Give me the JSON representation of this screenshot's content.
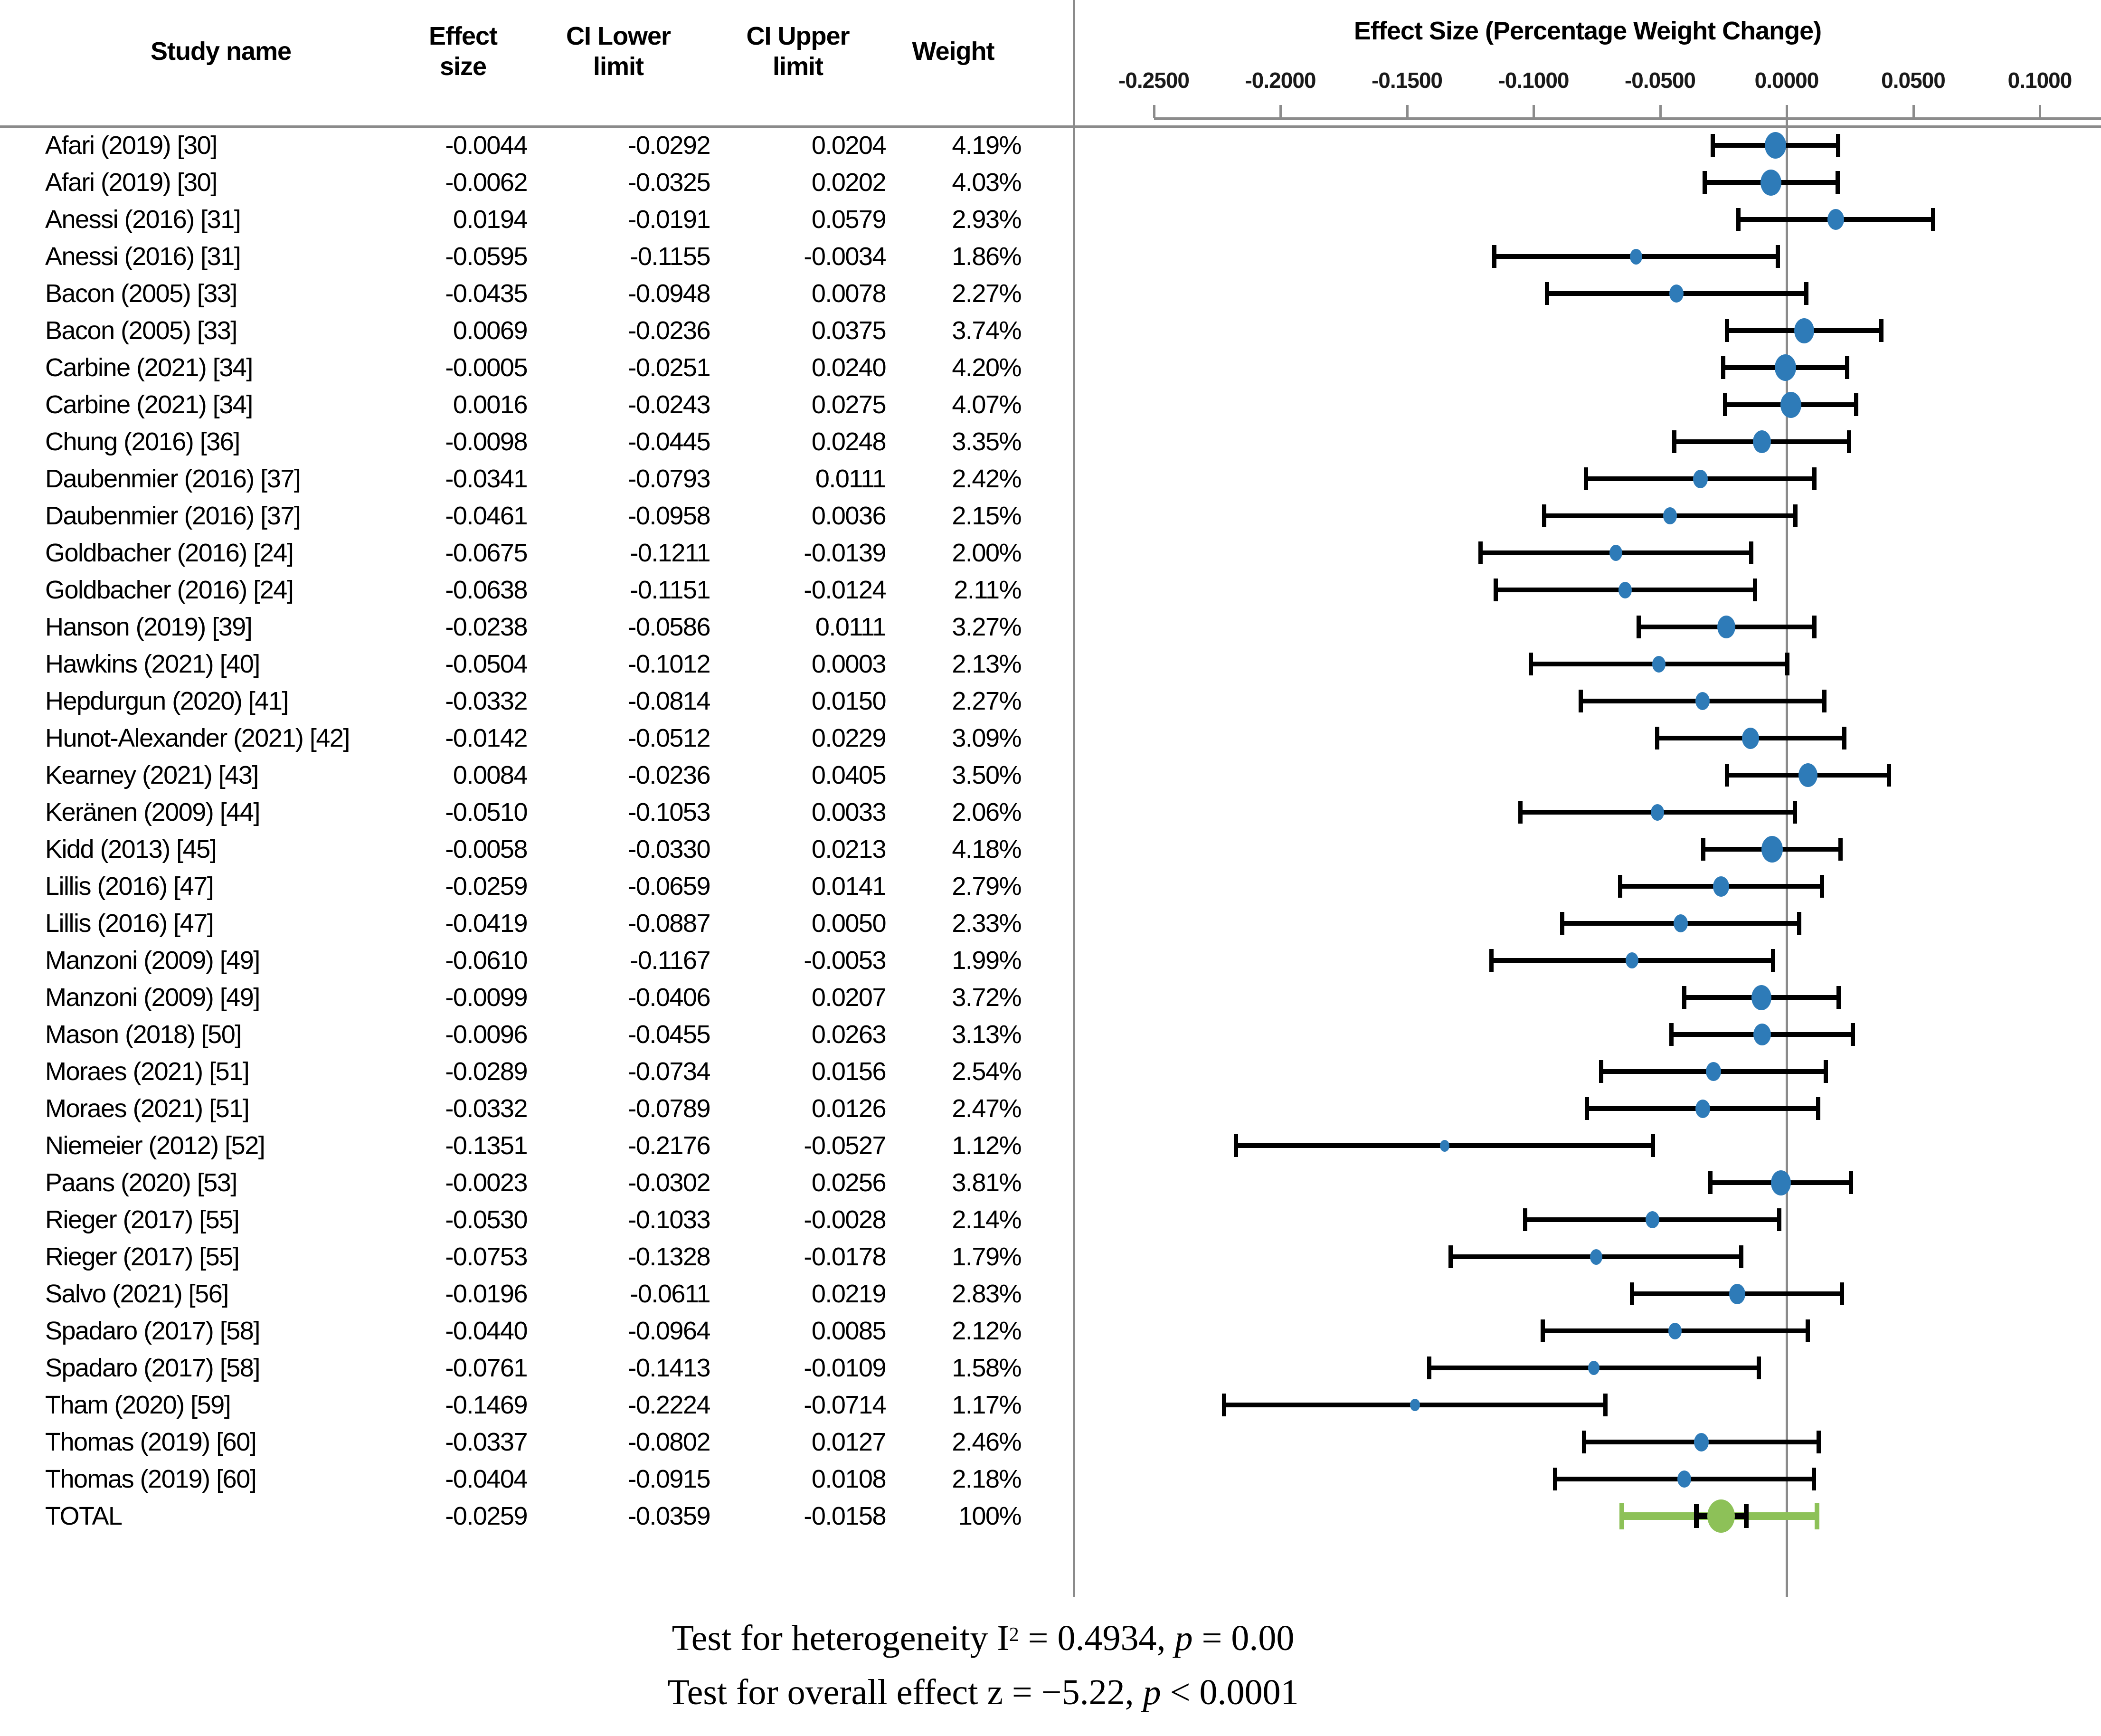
{
  "colors": {
    "marker_blue": "#2E7BB8",
    "total_green": "#8DC158",
    "line_gray": "#8B8B8B",
    "whisker_black": "#000000"
  },
  "chart_data": {
    "type": "forest",
    "title": "Effect Size (Percentage Weight Change)",
    "xlabel": "Effect Size (Percentage Weight Change)",
    "x_range": [
      -0.282,
      0.124
    ],
    "grid": false,
    "columns": {
      "study": "Study name",
      "effect": "Effect\nsize",
      "ci_lower": "CI Lower\nlimit",
      "ci_upper": "CI Upper\nlimit",
      "weight": "Weight"
    },
    "axis_ticks": [
      {
        "label": "-0.2500",
        "value": -0.25
      },
      {
        "label": "-0.2000",
        "value": -0.2
      },
      {
        "label": "-0.1500",
        "value": -0.15
      },
      {
        "label": "-0.1000",
        "value": -0.1
      },
      {
        "label": "-0.0500",
        "value": -0.05
      },
      {
        "label": "0.0000",
        "value": 0.0
      },
      {
        "label": "0.0500",
        "value": 0.05
      },
      {
        "label": "0.1000",
        "value": 0.1
      }
    ],
    "studies": [
      {
        "name": "Afari (2019) [30]",
        "effect": -0.0044,
        "ci_lower": -0.0292,
        "ci_upper": 0.0204,
        "weight": 4.19,
        "weight_label": "4.19%"
      },
      {
        "name": "Afari (2019) [30]",
        "effect": -0.0062,
        "ci_lower": -0.0325,
        "ci_upper": 0.0202,
        "weight": 4.03,
        "weight_label": "4.03%"
      },
      {
        "name": "Anessi (2016) [31]",
        "effect": 0.0194,
        "ci_lower": -0.0191,
        "ci_upper": 0.0579,
        "weight": 2.93,
        "weight_label": "2.93%"
      },
      {
        "name": "Anessi (2016) [31]",
        "effect": -0.0595,
        "ci_lower": -0.1155,
        "ci_upper": -0.0034,
        "weight": 1.86,
        "weight_label": "1.86%"
      },
      {
        "name": "Bacon (2005) [33]",
        "effect": -0.0435,
        "ci_lower": -0.0948,
        "ci_upper": 0.0078,
        "weight": 2.27,
        "weight_label": "2.27%"
      },
      {
        "name": "Bacon (2005) [33]",
        "effect": 0.0069,
        "ci_lower": -0.0236,
        "ci_upper": 0.0375,
        "weight": 3.74,
        "weight_label": "3.74%"
      },
      {
        "name": "Carbine (2021) [34]",
        "effect": -0.0005,
        "ci_lower": -0.0251,
        "ci_upper": 0.024,
        "weight": 4.2,
        "weight_label": "4.20%"
      },
      {
        "name": "Carbine (2021) [34]",
        "effect": 0.0016,
        "ci_lower": -0.0243,
        "ci_upper": 0.0275,
        "weight": 4.07,
        "weight_label": "4.07%"
      },
      {
        "name": "Chung (2016) [36]",
        "effect": -0.0098,
        "ci_lower": -0.0445,
        "ci_upper": 0.0248,
        "weight": 3.35,
        "weight_label": "3.35%"
      },
      {
        "name": "Daubenmier (2016) [37]",
        "effect": -0.0341,
        "ci_lower": -0.0793,
        "ci_upper": 0.0111,
        "weight": 2.42,
        "weight_label": "2.42%"
      },
      {
        "name": "Daubenmier (2016) [37]",
        "effect": -0.0461,
        "ci_lower": -0.0958,
        "ci_upper": 0.0036,
        "weight": 2.15,
        "weight_label": "2.15%"
      },
      {
        "name": "Goldbacher (2016) [24]",
        "effect": -0.0675,
        "ci_lower": -0.1211,
        "ci_upper": -0.0139,
        "weight": 2.0,
        "weight_label": "2.00%"
      },
      {
        "name": "Goldbacher (2016) [24]",
        "effect": -0.0638,
        "ci_lower": -0.1151,
        "ci_upper": -0.0124,
        "weight": 2.11,
        "weight_label": "2.11%"
      },
      {
        "name": "Hanson (2019) [39]",
        "effect": -0.0238,
        "ci_lower": -0.0586,
        "ci_upper": 0.0111,
        "weight": 3.27,
        "weight_label": "3.27%"
      },
      {
        "name": "Hawkins (2021) [40]",
        "effect": -0.0504,
        "ci_lower": -0.1012,
        "ci_upper": 0.0003,
        "weight": 2.13,
        "weight_label": "2.13%"
      },
      {
        "name": "Hepdurgun (2020) [41]",
        "effect": -0.0332,
        "ci_lower": -0.0814,
        "ci_upper": 0.015,
        "weight": 2.27,
        "weight_label": "2.27%"
      },
      {
        "name": "Hunot-Alexander (2021) [42]",
        "effect": -0.0142,
        "ci_lower": -0.0512,
        "ci_upper": 0.0229,
        "weight": 3.09,
        "weight_label": "3.09%"
      },
      {
        "name": "Kearney (2021) [43]",
        "effect": 0.0084,
        "ci_lower": -0.0236,
        "ci_upper": 0.0405,
        "weight": 3.5,
        "weight_label": "3.50%"
      },
      {
        "name": "Keränen (2009) [44]",
        "effect": -0.051,
        "ci_lower": -0.1053,
        "ci_upper": 0.0033,
        "weight": 2.06,
        "weight_label": "2.06%"
      },
      {
        "name": "Kidd (2013) [45]",
        "effect": -0.0058,
        "ci_lower": -0.033,
        "ci_upper": 0.0213,
        "weight": 4.18,
        "weight_label": "4.18%"
      },
      {
        "name": "Lillis (2016) [47]",
        "effect": -0.0259,
        "ci_lower": -0.0659,
        "ci_upper": 0.0141,
        "weight": 2.79,
        "weight_label": "2.79%"
      },
      {
        "name": "Lillis (2016) [47]",
        "effect": -0.0419,
        "ci_lower": -0.0887,
        "ci_upper": 0.005,
        "weight": 2.33,
        "weight_label": "2.33%"
      },
      {
        "name": "Manzoni (2009) [49]",
        "effect": -0.061,
        "ci_lower": -0.1167,
        "ci_upper": -0.0053,
        "weight": 1.99,
        "weight_label": "1.99%"
      },
      {
        "name": "Manzoni (2009) [49]",
        "effect": -0.0099,
        "ci_lower": -0.0406,
        "ci_upper": 0.0207,
        "weight": 3.72,
        "weight_label": "3.72%"
      },
      {
        "name": "Mason (2018) [50]",
        "effect": -0.0096,
        "ci_lower": -0.0455,
        "ci_upper": 0.0263,
        "weight": 3.13,
        "weight_label": "3.13%"
      },
      {
        "name": "Moraes (2021) [51]",
        "effect": -0.0289,
        "ci_lower": -0.0734,
        "ci_upper": 0.0156,
        "weight": 2.54,
        "weight_label": "2.54%"
      },
      {
        "name": "Moraes (2021) [51]",
        "effect": -0.0332,
        "ci_lower": -0.0789,
        "ci_upper": 0.0126,
        "weight": 2.47,
        "weight_label": "2.47%"
      },
      {
        "name": "Niemeier (2012) [52]",
        "effect": -0.1351,
        "ci_lower": -0.2176,
        "ci_upper": -0.0527,
        "weight": 1.12,
        "weight_label": "1.12%"
      },
      {
        "name": "Paans (2020) [53]",
        "effect": -0.0023,
        "ci_lower": -0.0302,
        "ci_upper": 0.0256,
        "weight": 3.81,
        "weight_label": "3.81%"
      },
      {
        "name": "Rieger (2017) [55]",
        "effect": -0.053,
        "ci_lower": -0.1033,
        "ci_upper": -0.0028,
        "weight": 2.14,
        "weight_label": "2.14%"
      },
      {
        "name": "Rieger (2017) [55]",
        "effect": -0.0753,
        "ci_lower": -0.1328,
        "ci_upper": -0.0178,
        "weight": 1.79,
        "weight_label": "1.79%"
      },
      {
        "name": "Salvo (2021) [56]",
        "effect": -0.0196,
        "ci_lower": -0.0611,
        "ci_upper": 0.0219,
        "weight": 2.83,
        "weight_label": "2.83%"
      },
      {
        "name": "Spadaro (2017) [58]",
        "effect": -0.044,
        "ci_lower": -0.0964,
        "ci_upper": 0.0085,
        "weight": 2.12,
        "weight_label": "2.12%"
      },
      {
        "name": "Spadaro (2017) [58]",
        "effect": -0.0761,
        "ci_lower": -0.1413,
        "ci_upper": -0.0109,
        "weight": 1.58,
        "weight_label": "1.58%"
      },
      {
        "name": "Tham (2020) [59]",
        "effect": -0.1469,
        "ci_lower": -0.2224,
        "ci_upper": -0.0714,
        "weight": 1.17,
        "weight_label": "1.17%"
      },
      {
        "name": "Thomas (2019) [60]",
        "effect": -0.0337,
        "ci_lower": -0.0802,
        "ci_upper": 0.0127,
        "weight": 2.46,
        "weight_label": "2.46%"
      },
      {
        "name": "Thomas (2019) [60]",
        "effect": -0.0404,
        "ci_lower": -0.0915,
        "ci_upper": 0.0108,
        "weight": 2.18,
        "weight_label": "2.18%"
      }
    ],
    "total": {
      "name": "TOTAL",
      "effect": -0.0259,
      "ci_lower": -0.0359,
      "ci_upper": -0.0158,
      "weight_label": "100%",
      "green_interval": [
        -0.066,
        0.013
      ]
    },
    "footnotes": [
      {
        "text": "Test for heterogeneity I² = 0.4934, p = 0.00",
        "segments": [
          {
            "t": "Test for heterogeneity I"
          },
          {
            "t": "2",
            "s": "sup"
          },
          {
            "t": " = 0.4934, "
          },
          {
            "t": "p",
            "s": "it"
          },
          {
            "t": " = 0.00"
          }
        ]
      },
      {
        "text": "Test for overall effect z = −5.22, p < 0.0001",
        "segments": [
          {
            "t": "Test for overall effect z = −5.22, "
          },
          {
            "t": "p",
            "s": "it"
          },
          {
            "t": " < 0.0001"
          }
        ]
      }
    ]
  }
}
